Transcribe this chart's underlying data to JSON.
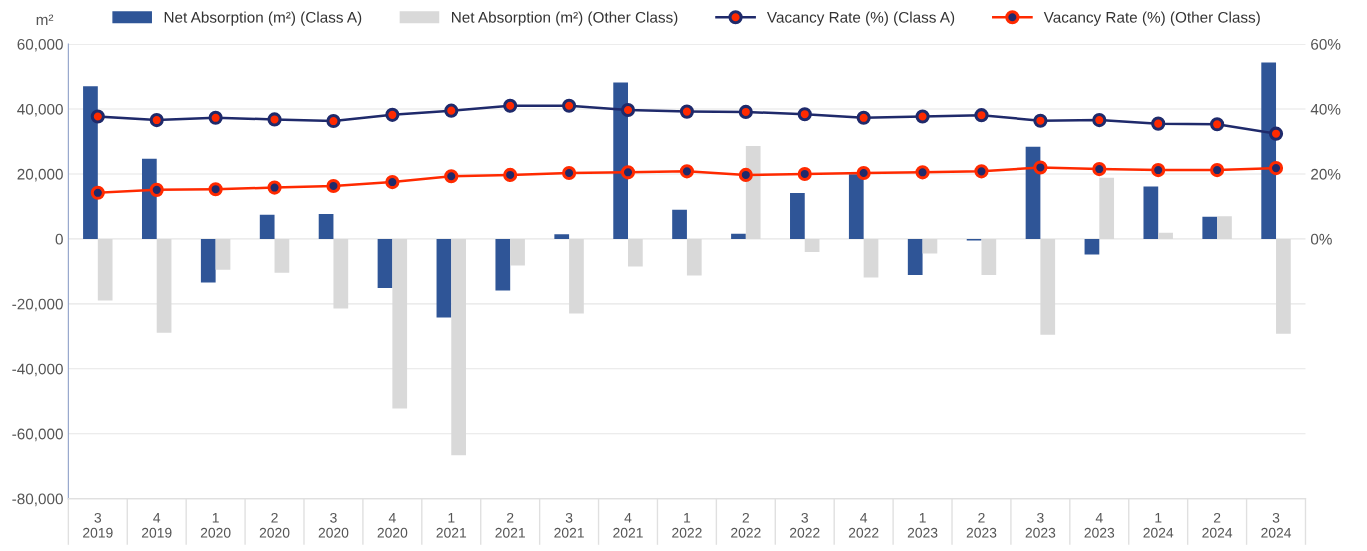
{
  "chart_data": {
    "type": "bar",
    "ylabel": "m²",
    "categories": [
      "3\n2019",
      "4\n2019",
      "1\n2020",
      "2\n2020",
      "3\n2020",
      "4\n2020",
      "1\n2021",
      "2\n2021",
      "3\n2021",
      "4\n2021",
      "1\n2022",
      "2\n2022",
      "3\n2022",
      "4\n2022",
      "1\n2023",
      "2\n2023",
      "3\n2023",
      "4\n2023",
      "1\n2024",
      "2\n2024",
      "3\n2024"
    ],
    "series": [
      {
        "name": "Net Absorption (m²) (Class A)",
        "color": "#2f5597",
        "values": [
          47000,
          24700,
          -13400,
          7400,
          7700,
          -15100,
          -24200,
          -15900,
          1400,
          48200,
          9000,
          1600,
          14100,
          19900,
          -11100,
          -500,
          28400,
          -4800,
          16100,
          6800,
          54300
        ]
      },
      {
        "name": "Net Absorption (m²) (Other Class)",
        "color": "#d9d9d9",
        "values": [
          -19000,
          -28900,
          -9500,
          -10400,
          -21400,
          -52200,
          -66600,
          -8200,
          -23000,
          -8500,
          -11300,
          28600,
          -4000,
          -11900,
          -4500,
          -11100,
          -29500,
          18800,
          1900,
          7000,
          -29200
        ]
      },
      {
        "name": "Vacancy Rate (%) (Class A)",
        "type": "line",
        "axis": "y2",
        "color": "#1f2a6b",
        "values": [
          37.7,
          36.6,
          37.3,
          36.8,
          36.3,
          38.2,
          39.5,
          41.0,
          41.0,
          39.7,
          39.2,
          39.1,
          38.4,
          37.3,
          37.7,
          38.1,
          36.4,
          36.6,
          35.5,
          35.3,
          32.4
        ]
      },
      {
        "name": "Vacancy Rate (%) (Other Class)",
        "type": "line",
        "axis": "y2",
        "color": "#ff2a00",
        "values": [
          14.2,
          15.1,
          15.3,
          15.8,
          16.3,
          17.5,
          19.3,
          19.7,
          20.3,
          20.5,
          20.8,
          19.7,
          20.0,
          20.3,
          20.5,
          20.8,
          22.0,
          21.5,
          21.2,
          21.2,
          21.8
        ]
      }
    ],
    "ylim": [
      -80000,
      60000
    ],
    "yticks": [
      {
        "value": -80000,
        "label": "-80,000"
      },
      {
        "value": -60000,
        "label": "-60,000"
      },
      {
        "value": -40000,
        "label": "-40,000"
      },
      {
        "value": -20000,
        "label": "-20,000"
      },
      {
        "value": 0,
        "label": "0"
      },
      {
        "value": 20000,
        "label": "20,000"
      },
      {
        "value": 40000,
        "label": "40,000"
      },
      {
        "value": 60000,
        "label": "60,000"
      }
    ],
    "y2lim": [
      -80,
      60
    ],
    "y2ticks": [
      {
        "value": 0,
        "label": "0%"
      },
      {
        "value": 20,
        "label": "20%"
      },
      {
        "value": 40,
        "label": "40%"
      },
      {
        "value": 60,
        "label": "60%"
      }
    ],
    "grid": "y",
    "legend": "top",
    "marker": "circle",
    "line_style": "solid"
  }
}
